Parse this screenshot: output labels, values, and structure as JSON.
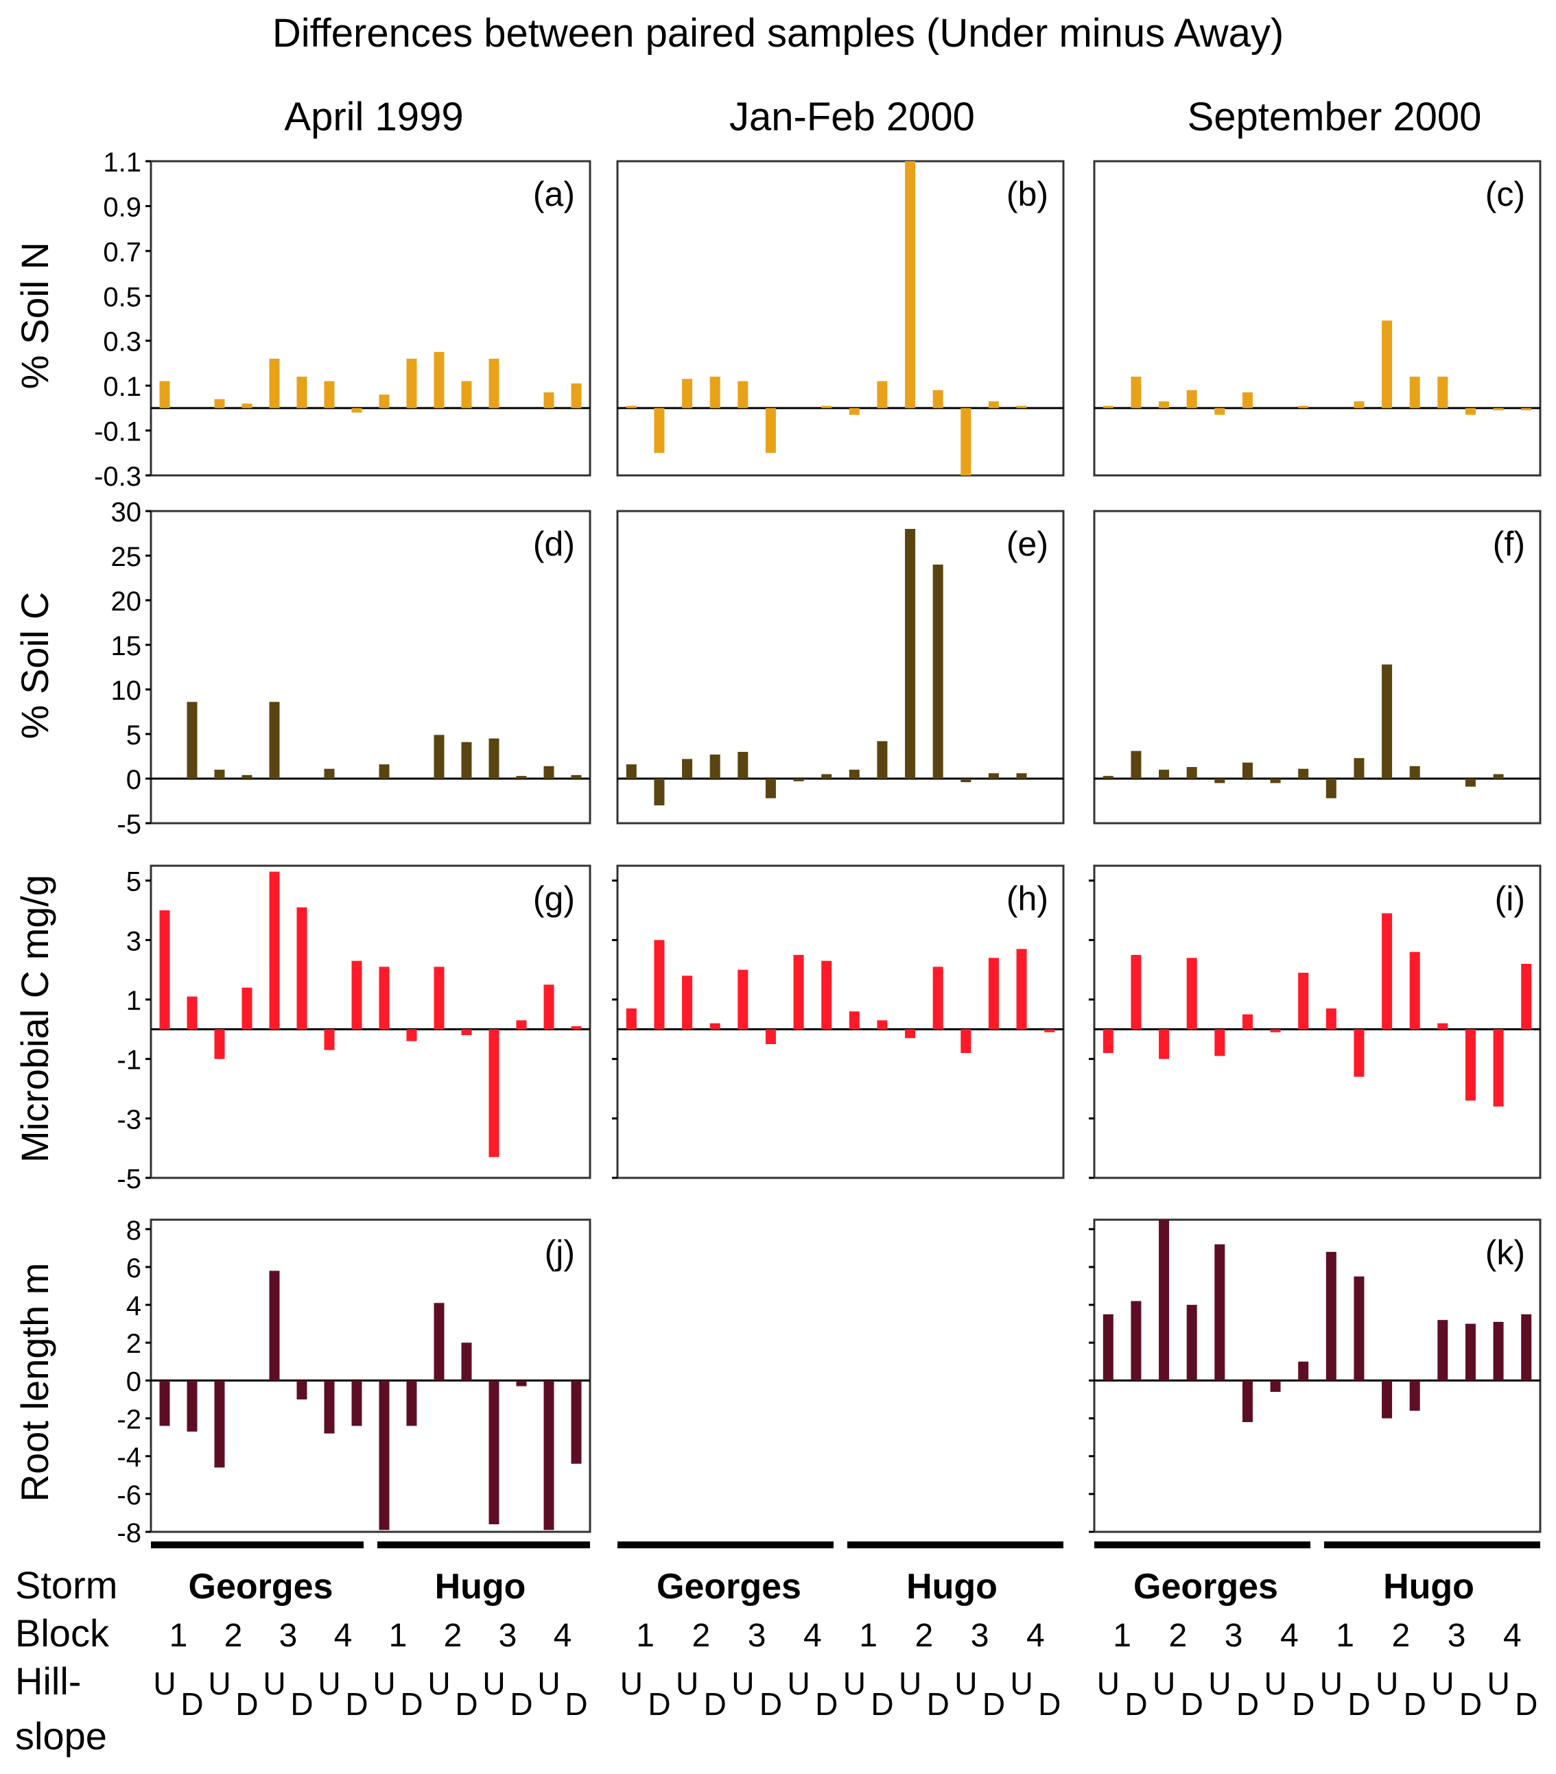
{
  "figure": {
    "title": "Differences between paired samples (Under minus Away)",
    "columns": [
      "April 1999",
      "Jan-Feb 2000",
      "September 2000"
    ],
    "row_labels": [
      "% Soil N",
      "% Soil C",
      "Microbial C mg/g",
      "Root length m"
    ],
    "colors": {
      "soilN": "#E8A21A",
      "soilC": "#5A4410",
      "micro": "#FF1A2A",
      "root": "#5E0E24"
    },
    "x_axis": {
      "storm_label": "Storm",
      "block_label": "Block",
      "hill_label_1": "Hill-",
      "hill_label_2": "slope",
      "storms": [
        "Georges",
        "Hugo"
      ],
      "blocks": [
        "1",
        "2",
        "3",
        "4",
        "1",
        "2",
        "3",
        "4"
      ],
      "hillslope": [
        "U",
        "D",
        "U",
        "D",
        "U",
        "D",
        "U",
        "D",
        "U",
        "D",
        "U",
        "D",
        "U",
        "D",
        "U",
        "D"
      ]
    }
  },
  "chart_data": [
    {
      "id": "a",
      "type": "bar",
      "panel_label": "(a)",
      "title": "April 1999",
      "ylabel": "% Soil N",
      "ylim": [
        -0.3,
        1.1
      ],
      "yticks": [
        "1.1",
        "0.9",
        "0.7",
        "0.5",
        "0.3",
        "0.1",
        "-0.1",
        "-0.3"
      ],
      "ytick_values": [
        1.1,
        0.9,
        0.7,
        0.5,
        0.3,
        0.1,
        -0.1,
        -0.3
      ],
      "values": [
        0.12,
        null,
        0.04,
        0.02,
        0.22,
        0.14,
        0.12,
        -0.02,
        0.06,
        0.22,
        0.25,
        0.12,
        0.22,
        null,
        0.07,
        0.11
      ]
    },
    {
      "id": "b",
      "type": "bar",
      "panel_label": "(b)",
      "title": "Jan-Feb 2000",
      "ylabel": "% Soil N",
      "ylim": [
        -0.3,
        1.1
      ],
      "yticks": [],
      "ytick_values": [],
      "values": [
        0.01,
        -0.2,
        0.13,
        0.14,
        0.12,
        -0.2,
        null,
        0.01,
        -0.03,
        0.12,
        1.1,
        0.08,
        -0.3,
        0.03,
        0.01,
        null
      ]
    },
    {
      "id": "c",
      "type": "bar",
      "panel_label": "(c)",
      "title": "September 2000",
      "ylabel": "% Soil N",
      "ylim": [
        -0.3,
        1.1
      ],
      "yticks": [],
      "ytick_values": [],
      "values": [
        0.01,
        0.14,
        0.03,
        0.08,
        -0.03,
        0.07,
        null,
        0.01,
        null,
        0.03,
        0.39,
        0.14,
        0.14,
        -0.03,
        -0.01,
        -0.01
      ]
    },
    {
      "id": "d",
      "type": "bar",
      "panel_label": "(d)",
      "title": "April 1999",
      "ylabel": "% Soil C",
      "ylim": [
        -5,
        30
      ],
      "yticks": [
        "30",
        "25",
        "20",
        "15",
        "10",
        "5",
        "0",
        "-5"
      ],
      "ytick_values": [
        30,
        25,
        20,
        15,
        10,
        5,
        0,
        -5
      ],
      "values": [
        null,
        8.6,
        1.0,
        0.4,
        8.6,
        null,
        1.1,
        null,
        1.6,
        null,
        4.9,
        4.1,
        4.5,
        0.3,
        1.4,
        0.4
      ]
    },
    {
      "id": "e",
      "type": "bar",
      "panel_label": "(e)",
      "title": "Jan-Feb 2000",
      "ylabel": "% Soil C",
      "ylim": [
        -5,
        30
      ],
      "yticks": [],
      "ytick_values": [],
      "values": [
        1.6,
        -3.0,
        2.2,
        2.7,
        3.0,
        -2.2,
        -0.3,
        0.5,
        1.0,
        4.2,
        28.0,
        24.0,
        -0.4,
        0.6,
        0.6,
        null
      ]
    },
    {
      "id": "f",
      "type": "bar",
      "panel_label": "(f)",
      "title": "September 2000",
      "ylabel": "% Soil C",
      "ylim": [
        -5,
        30
      ],
      "yticks": [],
      "ytick_values": [],
      "values": [
        0.3,
        3.1,
        1.0,
        1.3,
        -0.5,
        1.8,
        -0.5,
        1.1,
        -2.2,
        2.3,
        12.8,
        1.4,
        null,
        -0.9,
        0.5,
        null
      ]
    },
    {
      "id": "g",
      "type": "bar",
      "panel_label": "(g)",
      "title": "April 1999",
      "ylabel": "Microbial C mg/g",
      "ylim": [
        -5,
        5.5
      ],
      "yticks": [
        "5",
        "3",
        "1",
        "-1",
        "-3",
        "-5"
      ],
      "ytick_values": [
        5,
        3,
        1,
        -1,
        -3,
        -5
      ],
      "values": [
        4.0,
        1.1,
        -1.0,
        1.4,
        5.3,
        4.1,
        -0.7,
        2.3,
        2.1,
        -0.4,
        2.1,
        -0.2,
        -4.3,
        0.3,
        1.5,
        0.1
      ]
    },
    {
      "id": "h",
      "type": "bar",
      "panel_label": "(h)",
      "title": "Jan-Feb 2000",
      "ylabel": "Microbial C mg/g",
      "ylim": [
        -5,
        5.5
      ],
      "yticks": [],
      "ytick_values": [
        5,
        3,
        1,
        -1,
        -3,
        -5
      ],
      "values": [
        0.7,
        3.0,
        1.8,
        0.2,
        2.0,
        -0.5,
        2.5,
        2.3,
        0.6,
        0.3,
        -0.3,
        2.1,
        -0.8,
        2.4,
        2.7,
        -0.1
      ]
    },
    {
      "id": "i",
      "type": "bar",
      "panel_label": "(i)",
      "title": "September 2000",
      "ylabel": "Microbial C mg/g",
      "ylim": [
        -5,
        5.5
      ],
      "yticks": [],
      "ytick_values": [
        5,
        3,
        1,
        -1,
        -3,
        -5
      ],
      "values": [
        -0.8,
        2.5,
        -1.0,
        2.4,
        -0.9,
        0.5,
        -0.1,
        1.9,
        0.7,
        -1.6,
        3.9,
        2.6,
        0.2,
        -2.4,
        -2.6,
        2.2
      ]
    },
    {
      "id": "j",
      "type": "bar",
      "panel_label": "(j)",
      "title": "April 1999",
      "ylabel": "Root length m",
      "ylim": [
        -8,
        8.5
      ],
      "yticks": [
        "8",
        "6",
        "4",
        "2",
        "0",
        "-2",
        "-4",
        "-6",
        "-8"
      ],
      "ytick_values": [
        8,
        6,
        4,
        2,
        0,
        -2,
        -4,
        -6,
        -8
      ],
      "values": [
        -2.4,
        -2.7,
        -4.6,
        null,
        5.8,
        -1.0,
        -2.8,
        -2.4,
        -7.9,
        -2.4,
        4.1,
        2.0,
        -7.6,
        -0.3,
        -7.9,
        -4.4
      ]
    },
    {
      "id": "k",
      "type": "bar",
      "panel_label": "(k)",
      "title": "September 2000",
      "ylabel": "Root length m",
      "ylim": [
        -8,
        8.5
      ],
      "yticks": [],
      "ytick_values": [
        8,
        6,
        4,
        2,
        0,
        -2,
        -4,
        -6,
        -8
      ],
      "values": [
        3.5,
        4.2,
        8.6,
        4.0,
        7.2,
        -2.2,
        -0.6,
        1.0,
        6.8,
        5.5,
        -2.0,
        -1.6,
        3.2,
        3.0,
        3.1,
        3.5
      ]
    }
  ]
}
